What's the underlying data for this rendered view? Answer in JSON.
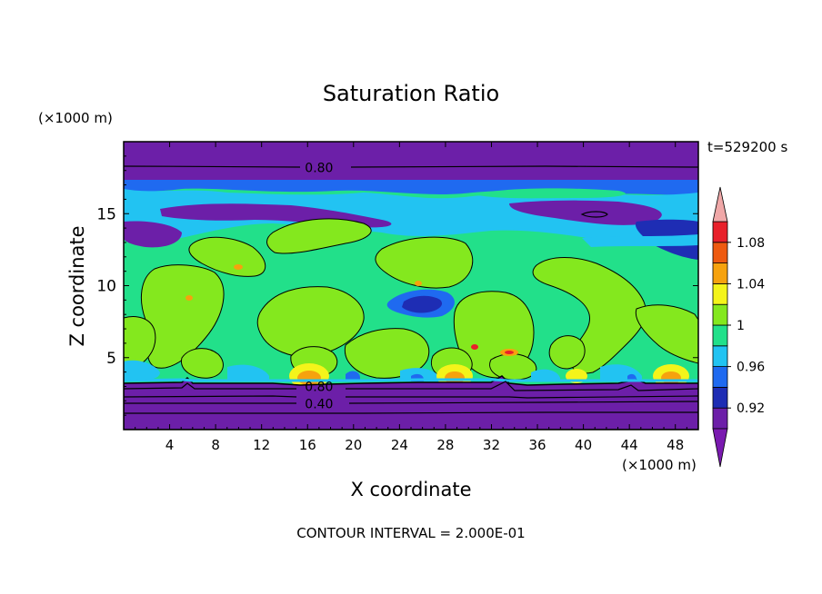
{
  "chart_data": {
    "type": "heatmap",
    "title": "Saturation Ratio",
    "xlabel": "X coordinate",
    "ylabel": "Z coordinate",
    "x_unit_label": "(×1000 m)",
    "y_unit_label": "(×1000 m)",
    "time_label": "t=529200 s",
    "footer": "CONTOUR INTERVAL = 2.000E-01",
    "xlim": [
      0,
      50
    ],
    "ylim": [
      0,
      20
    ],
    "x_ticks": [
      "4",
      "8",
      "12",
      "16",
      "20",
      "24",
      "28",
      "32",
      "36",
      "40",
      "44",
      "48"
    ],
    "x_tick_values": [
      4,
      8,
      12,
      16,
      20,
      24,
      28,
      32,
      36,
      40,
      44,
      48
    ],
    "y_ticks": [
      "5",
      "10",
      "15"
    ],
    "y_tick_values": [
      5,
      10,
      15
    ],
    "contour_labels": [
      {
        "text": "0.80",
        "x": 17,
        "z": 18.2
      },
      {
        "text": "0.80",
        "x": 17,
        "z": 3.0
      },
      {
        "text": "0.40",
        "x": 17,
        "z": 1.8
      }
    ],
    "colorbar": {
      "levels": [
        0.92,
        0.94,
        0.96,
        0.98,
        1.0,
        1.02,
        1.04,
        1.06,
        1.08,
        1.1
      ],
      "tick_labels": [
        "0.92",
        "0.96",
        "1",
        "1.04",
        "1.08"
      ],
      "tick_values": [
        0.92,
        0.96,
        1.0,
        1.04,
        1.08
      ],
      "colors": [
        "#6c1fa8",
        "#1e2db4",
        "#1f6af0",
        "#22c3f2",
        "#22e08a",
        "#84e81e",
        "#f4f41a",
        "#f6a20e",
        "#ee5a10",
        "#e8202a"
      ],
      "under_color": "#7a1ab0",
      "over_color": "#f0a8a8"
    }
  }
}
